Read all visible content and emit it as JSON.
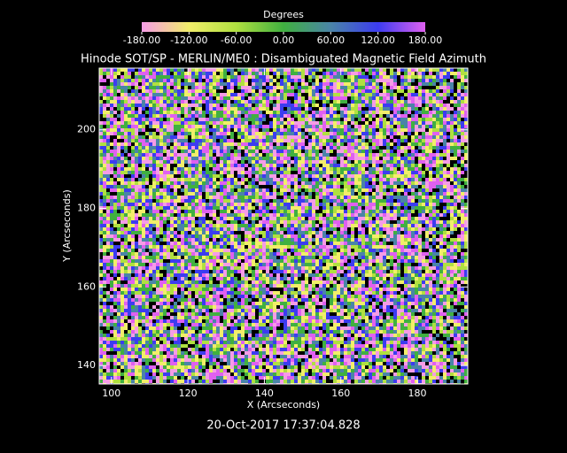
{
  "chart_data": {
    "type": "heatmap",
    "title": "Hinode SOT/SP - MERLIN/ME0 : Disambiguated Magnetic Field Azimuth",
    "x_label": "X (Arcseconds)",
    "y_label": "Y (Arcseconds)",
    "timestamp": "20-Oct-2017 17:37:04.828",
    "xlim": [
      96.8,
      193.2
    ],
    "xticks": [
      100,
      120,
      140,
      160,
      180
    ],
    "ylim": [
      135.3,
      215.7
    ],
    "yticks": [
      140,
      160,
      180,
      200
    ],
    "colorbar": {
      "label": "Degrees",
      "lim": [
        -180,
        180
      ],
      "ticks": [
        {
          "value": -180,
          "label": "-180.00"
        },
        {
          "value": -120,
          "label": "-120.00"
        },
        {
          "value": -60,
          "label": "-60.00"
        },
        {
          "value": 0,
          "label": "0.00"
        },
        {
          "value": 60,
          "label": "60.00"
        },
        {
          "value": 120,
          "label": "120.00"
        },
        {
          "value": 180,
          "label": "180.00"
        }
      ],
      "colormap": [
        {
          "value": -180,
          "color": "#f59ce6"
        },
        {
          "value": -120,
          "color": "#f2ee6a"
        },
        {
          "value": -60,
          "color": "#b0e040"
        },
        {
          "value": 0,
          "color": "#40b040"
        },
        {
          "value": 60,
          "color": "#4a84a8"
        },
        {
          "value": 120,
          "color": "#3c3cf0"
        },
        {
          "value": 180,
          "color": "#e060f0"
        }
      ]
    }
  }
}
